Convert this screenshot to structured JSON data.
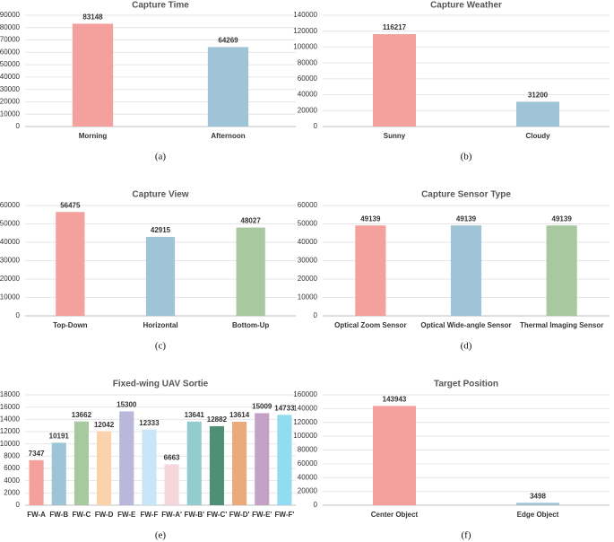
{
  "chart_data": [
    {
      "id": "a",
      "type": "bar",
      "title": "Capture Time",
      "caption": "(a)",
      "categories": [
        "Morning",
        "Afternoon"
      ],
      "values": [
        83148,
        64269
      ],
      "colors": [
        "#f4a09d",
        "#9fc4d8"
      ],
      "ylim": [
        0,
        90000
      ],
      "yticks": [
        0,
        10000,
        20000,
        30000,
        40000,
        50000,
        60000,
        70000,
        80000,
        90000
      ],
      "grid": true
    },
    {
      "id": "b",
      "type": "bar",
      "title": "Capture Weather",
      "caption": "(b)",
      "categories": [
        "Sunny",
        "Cloudy"
      ],
      "values": [
        116217,
        31200
      ],
      "colors": [
        "#f4a09d",
        "#9fc4d8"
      ],
      "ylim": [
        0,
        140000
      ],
      "yticks": [
        0,
        20000,
        40000,
        60000,
        80000,
        100000,
        120000,
        140000
      ],
      "grid": true
    },
    {
      "id": "c",
      "type": "bar",
      "title": "Capture View",
      "caption": "(c)",
      "categories": [
        "Top-Down",
        "Horizontal",
        "Bottom-Up"
      ],
      "values": [
        56475,
        42915,
        48027
      ],
      "colors": [
        "#f4a09d",
        "#9fc4d8",
        "#a8c8a0"
      ],
      "ylim": [
        0,
        60000
      ],
      "yticks": [
        0,
        10000,
        20000,
        30000,
        40000,
        50000,
        60000
      ],
      "grid": true
    },
    {
      "id": "d",
      "type": "bar",
      "title": "Capture Sensor Type",
      "caption": "(d)",
      "categories": [
        "Optical Zoom Sensor",
        "Optical Wide-angle Sensor",
        "Thermal Imaging Sensor"
      ],
      "values": [
        49139,
        49139,
        49139
      ],
      "colors": [
        "#f4a09d",
        "#9fc4d8",
        "#a8c8a0"
      ],
      "ylim": [
        0,
        60000
      ],
      "yticks": [
        0,
        10000,
        20000,
        30000,
        40000,
        50000,
        60000
      ],
      "grid": true
    },
    {
      "id": "e",
      "type": "bar",
      "title": "Fixed-wing UAV Sortie",
      "caption": "(e)",
      "categories": [
        "FW-A",
        "FW-B",
        "FW-C",
        "FW-D",
        "FW-E",
        "FW-F",
        "FW-A'",
        "FW-B'",
        "FW-C'",
        "FW-D'",
        "FW-E'",
        "FW-F'"
      ],
      "values": [
        7347,
        10191,
        13662,
        12042,
        15300,
        12333,
        6663,
        13641,
        12882,
        13614,
        15009,
        14733
      ],
      "colors": [
        "#f4a09d",
        "#9fc4d8",
        "#a8c8a0",
        "#fbd2ab",
        "#b9b7da",
        "#c7e6f7",
        "#f5d6d9",
        "#92ccce",
        "#4f8f75",
        "#eaaa7c",
        "#c4a2c6",
        "#92dcf1"
      ],
      "ylim": [
        0,
        18000
      ],
      "yticks": [
        0,
        2000,
        4000,
        6000,
        8000,
        10000,
        12000,
        14000,
        16000,
        18000
      ],
      "grid": true
    },
    {
      "id": "f",
      "type": "bar",
      "title": "Target Position",
      "caption": "(f)",
      "categories": [
        "Center Object",
        "Edge Object"
      ],
      "values": [
        143943,
        3498
      ],
      "colors": [
        "#f4a09d",
        "#9fc4d8"
      ],
      "ylim": [
        0,
        160000
      ],
      "yticks": [
        0,
        20000,
        40000,
        60000,
        80000,
        100000,
        120000,
        140000,
        160000
      ],
      "grid": true
    }
  ]
}
